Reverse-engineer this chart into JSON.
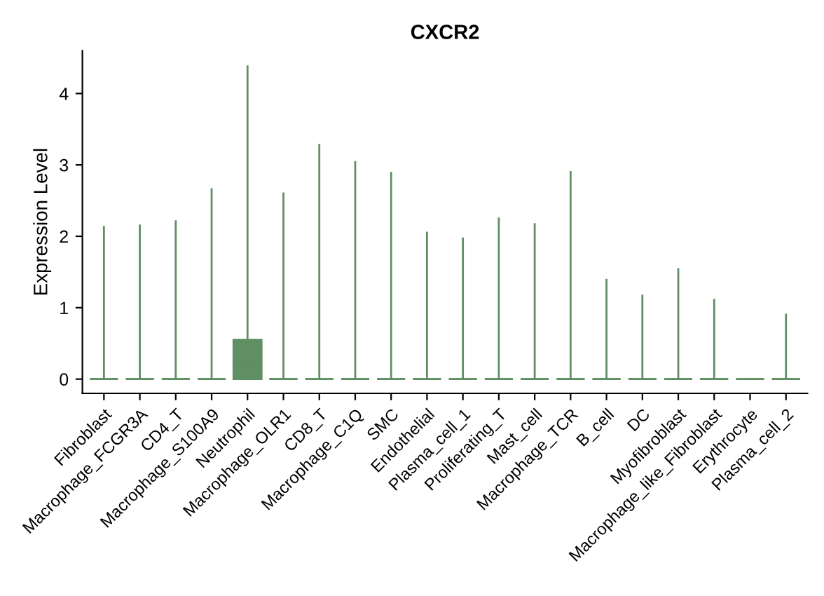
{
  "chart_data": {
    "type": "box",
    "title": "CXCR2",
    "ylabel": "Expression Level",
    "categories": [
      "Fibroblast",
      "Macrophage_FCGR3A",
      "CD4_T",
      "Macrophage_S100A9",
      "Neutrophil",
      "Macrophage_OLR1",
      "CD8_T",
      "Macrophage_C1Q",
      "SMC",
      "Endothelial",
      "Plasma_cell_1",
      "Proliferating_T",
      "Mast_cell",
      "Macrophage_TCR",
      "B_cell",
      "DC",
      "Myofibroblast",
      "Macrophage_like_Fibroblast",
      "Erythrocyte",
      "Plasma_cell_2"
    ],
    "boxes": [
      {
        "low": 0,
        "q1": 0,
        "median": 0,
        "q3": 0,
        "high": 2.13
      },
      {
        "low": 0,
        "q1": 0,
        "median": 0,
        "q3": 0,
        "high": 2.15
      },
      {
        "low": 0,
        "q1": 0,
        "median": 0,
        "q3": 0,
        "high": 2.21
      },
      {
        "low": 0,
        "q1": 0,
        "median": 0,
        "q3": 0,
        "high": 2.66
      },
      {
        "low": 0,
        "q1": 0,
        "median": 0.2,
        "q3": 0.55,
        "high": 4.38
      },
      {
        "low": 0,
        "q1": 0,
        "median": 0,
        "q3": 0,
        "high": 2.6
      },
      {
        "low": 0,
        "q1": 0,
        "median": 0,
        "q3": 0,
        "high": 3.28
      },
      {
        "low": 0,
        "q1": 0,
        "median": 0,
        "q3": 0,
        "high": 3.04
      },
      {
        "low": 0,
        "q1": 0,
        "median": 0,
        "q3": 0,
        "high": 2.89
      },
      {
        "low": 0,
        "q1": 0,
        "median": 0,
        "q3": 0,
        "high": 2.05
      },
      {
        "low": 0,
        "q1": 0,
        "median": 0,
        "q3": 0,
        "high": 1.97
      },
      {
        "low": 0,
        "q1": 0,
        "median": 0,
        "q3": 0,
        "high": 2.25
      },
      {
        "low": 0,
        "q1": 0,
        "median": 0,
        "q3": 0,
        "high": 2.17
      },
      {
        "low": 0,
        "q1": 0,
        "median": 0,
        "q3": 0,
        "high": 2.9
      },
      {
        "low": 0,
        "q1": 0,
        "median": 0,
        "q3": 0,
        "high": 1.39
      },
      {
        "low": 0,
        "q1": 0,
        "median": 0,
        "q3": 0,
        "high": 1.17
      },
      {
        "low": 0,
        "q1": 0,
        "median": 0,
        "q3": 0,
        "high": 1.54
      },
      {
        "low": 0,
        "q1": 0,
        "median": 0,
        "q3": 0,
        "high": 1.11
      },
      {
        "low": 0,
        "q1": 0,
        "median": 0,
        "q3": 0,
        "high": 0
      },
      {
        "low": 0,
        "q1": 0,
        "median": 0,
        "q3": 0,
        "high": 0.9
      }
    ],
    "color": "#5f8f62",
    "ylim": [
      -0.2,
      4.6
    ],
    "yticks": [
      0,
      1,
      2,
      3,
      4
    ],
    "grid": false,
    "legend": false
  }
}
